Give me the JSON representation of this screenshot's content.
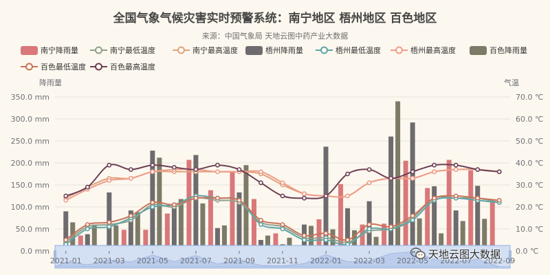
{
  "chart_data": {
    "type": "bar",
    "title": "全国气象气候灾害实时预警系统：南宁地区 梧州地区 百色地区",
    "subtitle": "来源：中国气象局 天地云图中药产业大数据",
    "ylabel_left": "降雨量",
    "ylabel_right": "气温",
    "ylim_left": [
      0,
      350
    ],
    "ylim_right": [
      0,
      70
    ],
    "y_ticks_left": [
      "0.0 mm",
      "50.0 mm",
      "100.0 mm",
      "150.0 mm",
      "200.0 mm",
      "250.0 mm",
      "300.0 mm",
      "350.0 mm"
    ],
    "y_ticks_right": [
      "0.0 ℃",
      "10.0 ℃",
      "20.0 ℃",
      "30.0 ℃",
      "40.0 ℃",
      "50.0 ℃",
      "60.0 ℃",
      "70.0 ℃"
    ],
    "x_tick_labels": [
      "2021-01",
      "2021-03",
      "2021-05",
      "2021-07",
      "2021-09",
      "2021-11",
      "2022-01",
      "2022-03",
      "2022-05",
      "2022-07",
      "2022-09"
    ],
    "grid": true,
    "legend_position": "top",
    "categories": [
      "2021-01",
      "2021-02",
      "2021-03",
      "2021-04",
      "2021-05",
      "2021-06",
      "2021-07",
      "2021-08",
      "2021-09",
      "2021-10",
      "2021-11",
      "2021-12",
      "2022-01",
      "2022-02",
      "2022-03",
      "2022-04",
      "2022-05",
      "2022-06",
      "2022-07",
      "2022-08",
      "2022-09"
    ],
    "series": [
      {
        "name": "南宁降雨量",
        "kind": "bar",
        "axis": "left",
        "color": "#d9787a",
        "values": [
          12,
          35,
          10,
          48,
          48,
          85,
          207,
          138,
          180,
          118,
          40,
          8,
          72,
          152,
          60,
          62,
          205,
          143,
          207,
          183,
          115
        ]
      },
      {
        "name": "南宁最低温度",
        "kind": "line",
        "axis": "right",
        "color": "#8fa08d",
        "values": [
          4,
          11,
          12,
          14,
          21,
          20,
          24,
          23,
          22,
          13,
          11,
          6,
          6,
          4,
          9,
          10,
          15,
          24,
          24,
          24,
          22
        ]
      },
      {
        "name": "南宁最高温度",
        "kind": "line",
        "axis": "right",
        "color": "#e0a27e",
        "values": [
          24,
          29,
          33,
          33,
          36,
          36,
          36,
          36,
          36,
          35,
          30,
          26,
          25,
          25,
          31,
          33,
          33,
          36,
          37,
          37,
          36
        ]
      },
      {
        "name": "梧州降雨量",
        "kind": "bar",
        "axis": "left",
        "color": "#6e6b6e",
        "values": [
          90,
          38,
          133,
          92,
          228,
          100,
          218,
          52,
          133,
          25,
          15,
          60,
          237,
          97,
          113,
          260,
          292,
          147,
          92,
          148,
          0
        ]
      },
      {
        "name": "梧州最低温度",
        "kind": "line",
        "axis": "right",
        "color": "#5fa4a6",
        "values": [
          3,
          10,
          11,
          15,
          20,
          21,
          25,
          24,
          23,
          12,
          10,
          5,
          5,
          3,
          10,
          10,
          14,
          23,
          24,
          23,
          22
        ]
      },
      {
        "name": "梧州最高温度",
        "kind": "line",
        "axis": "right",
        "color": "#ef9d8a",
        "values": [
          23,
          28,
          32,
          33,
          36,
          37,
          37,
          36,
          36,
          36,
          31,
          26,
          25,
          25,
          31,
          33,
          33,
          36,
          37,
          37,
          36
        ]
      },
      {
        "name": "百色降雨量",
        "kind": "bar",
        "axis": "left",
        "color": "#7d7a67",
        "values": [
          65,
          60,
          58,
          88,
          212,
          118,
          108,
          58,
          195,
          35,
          30,
          57,
          49,
          47,
          32,
          340,
          74,
          40,
          68,
          73,
          0
        ]
      },
      {
        "name": "百色最低温度",
        "kind": "line",
        "axis": "right",
        "color": "#c8735a",
        "values": [
          5,
          12,
          13,
          16,
          22,
          21,
          24,
          24,
          23,
          14,
          12,
          7,
          8,
          5,
          12,
          11,
          16,
          24,
          25,
          24,
          23
        ]
      },
      {
        "name": "百色最高温度",
        "kind": "line",
        "axis": "right",
        "color": "#6b3f55",
        "values": [
          25,
          29,
          39,
          37,
          39,
          38,
          37,
          39,
          37,
          31,
          25,
          24,
          25,
          35,
          37,
          33,
          36,
          39,
          39,
          37,
          36
        ]
      }
    ]
  },
  "watermark": {
    "text": "天地云图大数据",
    "icon": "wechat-icon"
  }
}
